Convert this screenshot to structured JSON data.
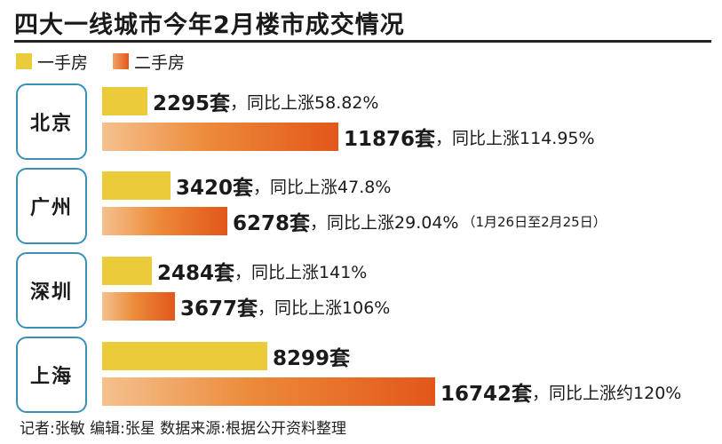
{
  "title": "四大一线城市今年2月楼市成交情况",
  "legend": [
    {
      "label": "一手房",
      "color": "#eccb3a"
    },
    {
      "label": "二手房",
      "color": "#e86a26"
    }
  ],
  "chart_data": {
    "type": "bar",
    "orientation": "horizontal",
    "title": "四大一线城市今年2月楼市成交情况",
    "unit": "套",
    "categories": [
      "北京",
      "广州",
      "深圳",
      "上海"
    ],
    "series": [
      {
        "name": "一手房",
        "values": [
          2295,
          3420,
          2484,
          8299
        ],
        "labels": [
          "2295套",
          "3420套",
          "2484套",
          "8299套"
        ],
        "yoy": [
          "，同比上涨58.82%",
          "，同比上涨47.8%",
          "，同比上涨141%",
          ""
        ]
      },
      {
        "name": "二手房",
        "values": [
          11876,
          6278,
          3677,
          16742
        ],
        "labels": [
          "11876套",
          "6278套",
          "3677套",
          "16742套"
        ],
        "yoy": [
          "，同比上涨114.95%",
          "，同比上涨29.04%",
          "，同比上涨106%",
          "，同比上涨约120%"
        ]
      }
    ],
    "annotations": [
      "（1月26日至2月25日）"
    ]
  },
  "footer": "记者:张敏   编辑:张星   数据来源:根据公开资料整理"
}
